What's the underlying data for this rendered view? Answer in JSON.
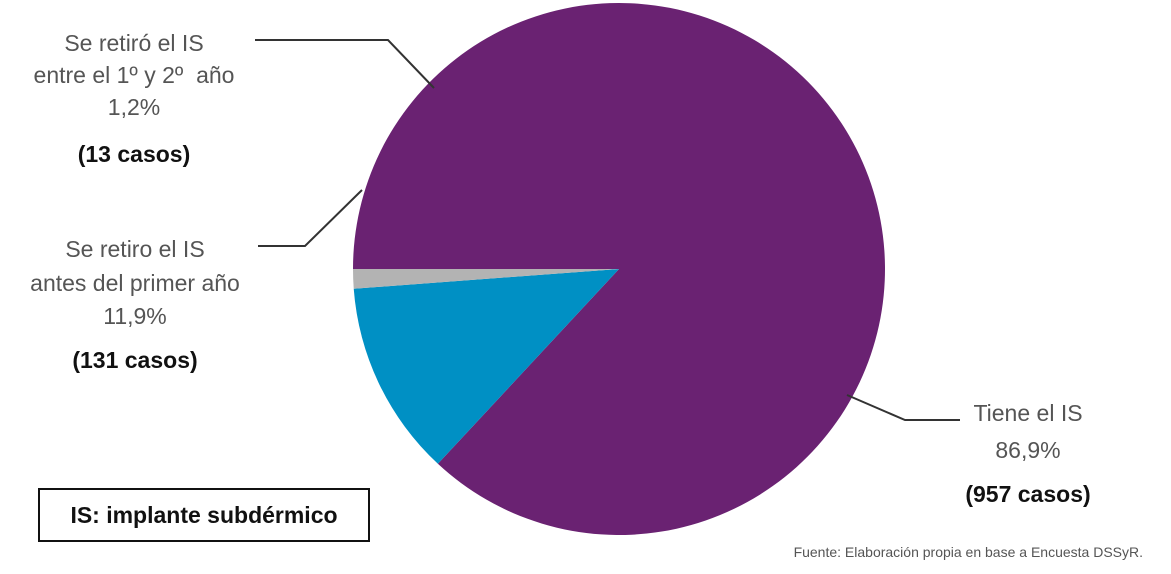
{
  "chart_data": {
    "type": "pie",
    "slices": [
      {
        "name_lines": [
          "Tiene el IS"
        ],
        "percent_label": "86,9%",
        "count_label": "(957 casos)",
        "value": 957,
        "percent": 86.9,
        "color": "#6a2272"
      },
      {
        "name_lines": [
          "Se retiro el IS",
          "antes del primer año"
        ],
        "percent_label": "11,9%",
        "count_label": "(131 casos)",
        "value": 131,
        "percent": 11.9,
        "color": "#0090c4"
      },
      {
        "name_lines": [
          "Se retiró el IS",
          "entre el 1º y 2º  año"
        ],
        "percent_label": "1,2%",
        "count_label": "(13 casos)",
        "value": 13,
        "percent": 1.2,
        "color": "#b3b3b3"
      }
    ],
    "legend_note": "IS: implante subdérmico",
    "source": "Fuente: Elaboración propia en base a Encuesta DSSyR."
  }
}
